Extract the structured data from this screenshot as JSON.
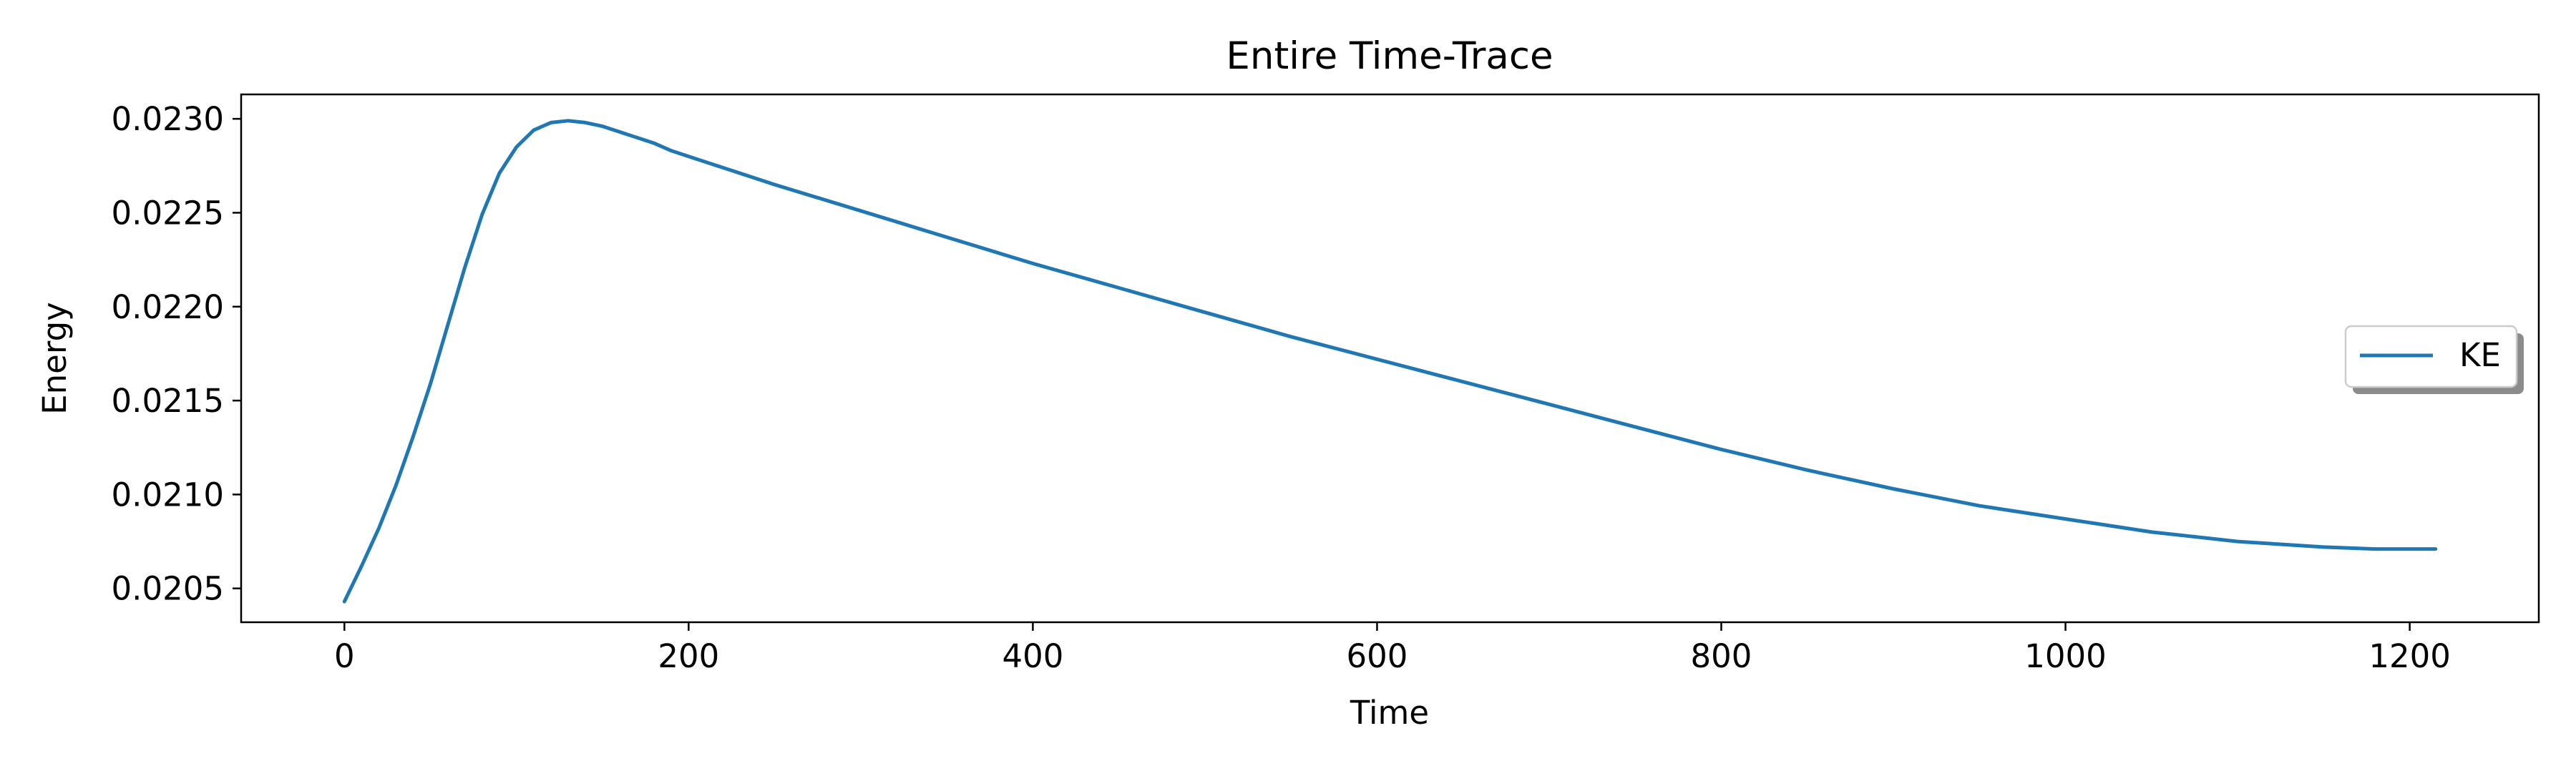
{
  "chart_data": {
    "type": "line",
    "title": "Entire Time-Trace",
    "xlabel": "Time",
    "ylabel": "Energy",
    "xlim": [
      -60,
      1275
    ],
    "ylim": [
      0.02032,
      0.02313
    ],
    "xticks": [
      0,
      200,
      400,
      600,
      800,
      1000,
      1200
    ],
    "xtick_labels": [
      "0",
      "200",
      "400",
      "600",
      "800",
      "1000",
      "1200"
    ],
    "yticks": [
      0.0205,
      0.021,
      0.0215,
      0.022,
      0.0225,
      0.023
    ],
    "ytick_labels": [
      "0.0205",
      "0.0210",
      "0.0215",
      "0.0220",
      "0.0225",
      "0.0230"
    ],
    "grid": false,
    "legend_position": "center-right",
    "series": [
      {
        "name": "KE",
        "color": "#1f77b4",
        "x": [
          0,
          10,
          20,
          30,
          40,
          50,
          60,
          70,
          80,
          90,
          100,
          110,
          120,
          130,
          140,
          150,
          160,
          170,
          180,
          190,
          200,
          250,
          300,
          350,
          400,
          450,
          500,
          550,
          600,
          650,
          700,
          750,
          800,
          850,
          900,
          950,
          1000,
          1050,
          1100,
          1150,
          1180,
          1215
        ],
        "y": [
          0.02043,
          0.02062,
          0.02082,
          0.02105,
          0.02131,
          0.02159,
          0.0219,
          0.02221,
          0.02249,
          0.02271,
          0.02285,
          0.02294,
          0.02298,
          0.02299,
          0.02298,
          0.02296,
          0.02293,
          0.0229,
          0.02287,
          0.02283,
          0.0228,
          0.02265,
          0.02251,
          0.02237,
          0.02223,
          0.0221,
          0.02197,
          0.02184,
          0.02172,
          0.0216,
          0.02148,
          0.02136,
          0.02124,
          0.02113,
          0.02103,
          0.02094,
          0.02087,
          0.0208,
          0.02075,
          0.02072,
          0.02071,
          0.02071
        ]
      }
    ]
  }
}
